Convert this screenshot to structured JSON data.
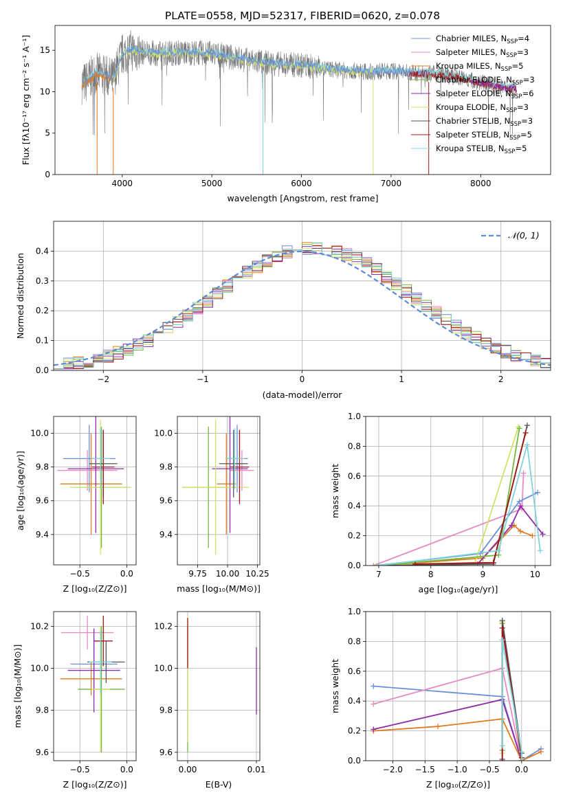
{
  "title": "PLATE=0558, MJD=52317, FIBERID=0620, z=0.078",
  "colors": {
    "chabrier_miles": "#6a8fd8",
    "salpeter_miles": "#e78ac3",
    "kroupa_miles": "#e07b1e",
    "chabrier_elodie": "#75b83a",
    "salpeter_elodie": "#8e2aa8",
    "kroupa_elodie": "#d4e06a",
    "chabrier_stelib": "#555555",
    "salpeter_stelib": "#a31515",
    "kroupa_stelib": "#7fd3dc",
    "normal_curve": "#5b8bd6"
  },
  "chart_data": [
    {
      "id": "spectrum",
      "type": "line",
      "title": "PLATE=0558, MJD=52317, FIBERID=0620, z=0.078",
      "xlabel": "wavelength [Angstrom, rest frame]",
      "ylabel": "Flux [fλ10⁻¹⁷ erg cm⁻² s⁻¹ A⁻¹]",
      "xlim": [
        3250,
        8780
      ],
      "ylim": [
        0,
        18
      ],
      "xticks": [
        4000,
        5000,
        6000,
        7000,
        8000
      ],
      "yticks": [
        0,
        5,
        10,
        15
      ],
      "legend_position": "top-right",
      "legend": [
        {
          "label": "Chabrier MILES, N",
          "sub": "SSP",
          "tail": "=4",
          "color_key": "chabrier_miles"
        },
        {
          "label": "Salpeter MILES, N",
          "sub": "SSP",
          "tail": "=3",
          "color_key": "salpeter_miles"
        },
        {
          "label": "Kroupa MILES, N",
          "sub": "SSP",
          "tail": "=5",
          "color_key": "kroupa_miles"
        },
        {
          "label": "Chabrier ELODIE, N",
          "sub": "SSP",
          "tail": "=3",
          "color_key": "chabrier_elodie"
        },
        {
          "label": "Salpeter ELODIE, N",
          "sub": "SSP",
          "tail": "=6",
          "color_key": "salpeter_elodie"
        },
        {
          "label": "Kroupa ELODIE, N",
          "sub": "SSP",
          "tail": "=3",
          "color_key": "kroupa_elodie"
        },
        {
          "label": "Chabrier STELIB, N",
          "sub": "SSP",
          "tail": "=3",
          "color_key": "chabrier_stelib"
        },
        {
          "label": "Salpeter STELIB, N",
          "sub": "SSP",
          "tail": "=5",
          "color_key": "salpeter_stelib"
        },
        {
          "label": "Kroupa STELIB, N",
          "sub": "SSP",
          "tail": "=5",
          "color_key": "kroupa_stelib"
        }
      ],
      "continuum": {
        "x": [
          3550,
          3600,
          3700,
          3800,
          3900,
          4000,
          4100,
          4200,
          4400,
          4600,
          4800,
          5000,
          5200,
          5400,
          5600,
          5800,
          6000,
          6200,
          6400,
          6600,
          6800,
          7000,
          7200,
          7400,
          7600,
          7800,
          8000,
          8200,
          8400
        ],
        "y": [
          11.0,
          11.2,
          12.2,
          12.0,
          11.5,
          14.5,
          15.0,
          14.8,
          14.6,
          14.7,
          14.7,
          14.6,
          14.2,
          13.8,
          13.5,
          13.3,
          13.2,
          12.9,
          12.6,
          12.5,
          12.4,
          12.5,
          12.3,
          12.2,
          12.0,
          11.6,
          11.1,
          10.6,
          10.3
        ]
      },
      "models": [
        {
          "color_key": "kroupa_stelib",
          "offset": 0.15,
          "range": [
            3550,
            8400
          ]
        },
        {
          "color_key": "kroupa_elodie",
          "offset": -0.1,
          "range": [
            3900,
            6800
          ]
        },
        {
          "color_key": "chabrier_miles",
          "offset": 0.05,
          "range": [
            3550,
            7420
          ]
        },
        {
          "color_key": "salpeter_stelib",
          "offset": -0.05,
          "range": [
            7200,
            8400
          ]
        },
        {
          "color_key": "salpeter_elodie",
          "offset": 0.0,
          "range": [
            7900,
            8400
          ]
        },
        {
          "color_key": "kroupa_miles",
          "offset": -0.2,
          "range": [
            3550,
            3900
          ]
        }
      ]
    },
    {
      "id": "residuals",
      "type": "histogram",
      "xlabel": "(data-model)/error",
      "ylabel": "Normed distribution",
      "xlim": [
        -2.5,
        2.5
      ],
      "ylim": [
        0,
        0.5
      ],
      "xticks": [
        -2,
        -1,
        0,
        1,
        2
      ],
      "yticks": [
        0.0,
        0.1,
        0.2,
        0.3,
        0.4
      ],
      "legend_position": "top-right",
      "legend_label": "𝒩(0, 1)",
      "bin_width": 0.1,
      "normal": {
        "mean": 0,
        "sigma": 1
      }
    },
    {
      "id": "age-vs-Z",
      "type": "errorbar",
      "xlabel": "Z [log₁₀(Z/Z⊙)]",
      "ylabel": "age  [log₁₀(age/yr)]",
      "xlim": [
        -0.78,
        0.1
      ],
      "ylim": [
        9.22,
        10.1
      ],
      "xticks": [
        -0.5,
        0.0
      ],
      "yticks": [
        9.4,
        9.6,
        9.8,
        10.0
      ],
      "points": [
        {
          "color_key": "chabrier_miles",
          "x": -0.4,
          "y": 9.85,
          "xerr": 0.28,
          "yerr": 0.2
        },
        {
          "color_key": "salpeter_miles",
          "x": -0.42,
          "y": 9.78,
          "xerr": 0.32,
          "yerr": 0.12
        },
        {
          "color_key": "kroupa_miles",
          "x": -0.38,
          "y": 9.7,
          "xerr": 0.33,
          "yerr": 0.3
        },
        {
          "color_key": "chabrier_elodie",
          "x": -0.27,
          "y": 9.68,
          "xerr": 0.3,
          "yerr": 0.36
        },
        {
          "color_key": "salpeter_elodie",
          "x": -0.33,
          "y": 9.79,
          "xerr": 0.3,
          "yerr": 0.38
        },
        {
          "color_key": "kroupa_elodie",
          "x": -0.28,
          "y": 9.68,
          "xerr": 0.33,
          "yerr": 0.4
        },
        {
          "color_key": "chabrier_stelib",
          "x": -0.25,
          "y": 9.82,
          "xerr": 0.15,
          "yerr": 0.2
        },
        {
          "color_key": "salpeter_stelib",
          "x": -0.25,
          "y": 9.8,
          "xerr": 0.12,
          "yerr": 0.22
        },
        {
          "color_key": "kroupa_stelib",
          "x": -0.28,
          "y": 9.85,
          "xerr": 0.1,
          "yerr": 0.18
        }
      ]
    },
    {
      "id": "age-vs-mass",
      "type": "errorbar",
      "xlabel": "mass [log₁₀(M/M⊙)]",
      "ylabel": "",
      "xlim": [
        9.58,
        10.27
      ],
      "ylim": [
        9.22,
        10.1
      ],
      "xticks": [
        9.75,
        10.0,
        10.25
      ],
      "tick_labels": [
        "9.75",
        "10.00",
        "10.25"
      ],
      "yticks": [
        9.4,
        9.6,
        9.8,
        10.0
      ],
      "points": [
        {
          "color_key": "chabrier_miles",
          "x": 10.08,
          "y": 9.85,
          "xerr": 0.09,
          "yerr": 0.2
        },
        {
          "color_key": "salpeter_miles",
          "x": 10.12,
          "y": 9.78,
          "xerr": 0.1,
          "yerr": 0.12
        },
        {
          "color_key": "kroupa_miles",
          "x": 9.99,
          "y": 9.7,
          "xerr": 0.08,
          "yerr": 0.3
        },
        {
          "color_key": "chabrier_elodie",
          "x": 9.84,
          "y": 9.68,
          "xerr": 0.22,
          "yerr": 0.36
        },
        {
          "color_key": "salpeter_elodie",
          "x": 10.02,
          "y": 9.79,
          "xerr": 0.15,
          "yerr": 0.38
        },
        {
          "color_key": "kroupa_elodie",
          "x": 9.9,
          "y": 9.68,
          "xerr": 0.28,
          "yerr": 0.4
        },
        {
          "color_key": "chabrier_stelib",
          "x": 10.05,
          "y": 9.82,
          "xerr": 0.12,
          "yerr": 0.2
        },
        {
          "color_key": "salpeter_stelib",
          "x": 10.1,
          "y": 9.8,
          "xerr": 0.08,
          "yerr": 0.22
        },
        {
          "color_key": "kroupa_stelib",
          "x": 10.06,
          "y": 9.85,
          "xerr": 0.08,
          "yerr": 0.18
        }
      ]
    },
    {
      "id": "weight-vs-age",
      "type": "line",
      "xlabel": "age  [log₁₀(age/yr)]",
      "ylabel": "mass weight",
      "xlim": [
        6.75,
        10.3
      ],
      "ylim": [
        0,
        1.0
      ],
      "xticks": [
        7,
        8,
        9,
        10
      ],
      "yticks": [
        0.0,
        0.2,
        0.4,
        0.6,
        0.8,
        1.0
      ],
      "series": [
        {
          "color_key": "salpeter_miles",
          "x": [
            6.9,
            9.75,
            9.78
          ],
          "y": [
            0.0,
            0.38,
            0.62
          ]
        },
        {
          "color_key": "kroupa_miles",
          "x": [
            7.0,
            9.0,
            9.6,
            9.72,
            9.95
          ],
          "y": [
            0.0,
            0.05,
            0.27,
            0.23,
            0.2
          ]
        },
        {
          "color_key": "chabrier_miles",
          "x": [
            6.95,
            8.95,
            9.7,
            10.05
          ],
          "y": [
            0.0,
            0.08,
            0.43,
            0.49
          ]
        },
        {
          "color_key": "salpeter_elodie",
          "x": [
            6.95,
            8.9,
            9.55,
            9.72,
            10.15
          ],
          "y": [
            0.0,
            0.01,
            0.27,
            0.4,
            0.21
          ]
        },
        {
          "color_key": "kroupa_elodie",
          "x": [
            6.95,
            8.85,
            9.68
          ],
          "y": [
            0.0,
            0.02,
            0.93
          ]
        },
        {
          "color_key": "chabrier_elodie",
          "x": [
            7.0,
            9.3,
            9.7
          ],
          "y": [
            0.0,
            0.07,
            0.92
          ]
        },
        {
          "color_key": "chabrier_stelib",
          "x": [
            7.0,
            9.2,
            9.85
          ],
          "y": [
            0.0,
            0.01,
            0.94
          ]
        },
        {
          "color_key": "salpeter_stelib",
          "x": [
            7.7,
            9.2,
            9.82
          ],
          "y": [
            0.01,
            0.02,
            0.89
          ]
        },
        {
          "color_key": "kroupa_stelib",
          "x": [
            7.0,
            9.3,
            9.85,
            10.1
          ],
          "y": [
            0.0,
            0.1,
            0.81,
            0.1
          ]
        }
      ]
    },
    {
      "id": "mass-vs-Z",
      "type": "errorbar",
      "xlabel": "Z [log₁₀(Z/Z⊙)]",
      "ylabel": "mass [log₁₀(M/M⊙)]",
      "xlim": [
        -0.78,
        0.1
      ],
      "ylim": [
        9.56,
        10.27
      ],
      "xticks": [
        -0.5,
        0.0
      ],
      "yticks": [
        9.6,
        9.8,
        10.0,
        10.2
      ],
      "points": [
        {
          "color_key": "chabrier_miles",
          "x": -0.35,
          "y": 10.02,
          "xerr": 0.25,
          "yerr": 0.12
        },
        {
          "color_key": "salpeter_miles",
          "x": -0.42,
          "y": 10.17,
          "xerr": 0.28,
          "yerr": 0.08
        },
        {
          "color_key": "kroupa_miles",
          "x": -0.38,
          "y": 9.95,
          "xerr": 0.33,
          "yerr": 0.08
        },
        {
          "color_key": "chabrier_elodie",
          "x": -0.27,
          "y": 9.9,
          "xerr": 0.25,
          "yerr": 0.3
        },
        {
          "color_key": "salpeter_elodie",
          "x": -0.35,
          "y": 9.99,
          "xerr": 0.28,
          "yerr": 0.2
        },
        {
          "color_key": "kroupa_elodie",
          "x": -0.28,
          "y": 9.9,
          "xerr": 0.1,
          "yerr": 0.3
        },
        {
          "color_key": "chabrier_stelib",
          "x": -0.22,
          "y": 10.03,
          "xerr": 0.2,
          "yerr": 0.1
        },
        {
          "color_key": "salpeter_stelib",
          "x": -0.25,
          "y": 10.13,
          "xerr": 0.1,
          "yerr": 0.12
        },
        {
          "color_key": "kroupa_stelib",
          "x": -0.28,
          "y": 10.03,
          "xerr": 0.12,
          "yerr": 0.15
        }
      ]
    },
    {
      "id": "mass-vs-ebv",
      "type": "errorbar",
      "xlabel": "E(B-V)",
      "ylabel": "",
      "xlim": [
        -0.0015,
        0.0105
      ],
      "ylim": [
        9.56,
        10.27
      ],
      "xticks": [
        0.0,
        0.01
      ],
      "tick_labels": [
        "0.00",
        "0.01"
      ],
      "yticks": [
        9.6,
        9.8,
        10.0,
        10.2
      ],
      "points": [
        {
          "color_key": "chabrier_elodie",
          "x": 0.0,
          "y": 9.9,
          "xerr": 0.0,
          "yerr": 0.3
        },
        {
          "color_key": "kroupa_elodie",
          "x": 0.0,
          "y": 9.95,
          "xerr": 0.0,
          "yerr": 0.3
        },
        {
          "color_key": "salpeter_stelib",
          "x": 0.0,
          "y": 10.12,
          "xerr": 0.0,
          "yerr": 0.12
        },
        {
          "color_key": "salpeter_elodie",
          "x": 0.01,
          "y": 9.94,
          "xerr": 0.0,
          "yerr": 0.16
        }
      ]
    },
    {
      "id": "weight-vs-Z",
      "type": "line",
      "xlabel": "Z [log₁₀(Z/Z⊙)]",
      "ylabel": "mass weight",
      "xlim": [
        -2.42,
        0.45
      ],
      "ylim": [
        0,
        1.0
      ],
      "xticks": [
        -2.0,
        -1.5,
        -1.0,
        -0.5,
        0.0
      ],
      "yticks": [
        0.0,
        0.2,
        0.4,
        0.6,
        0.8,
        1.0
      ],
      "series": [
        {
          "color_key": "chabrier_miles",
          "x": [
            -2.3,
            -0.3,
            0.0,
            0.3
          ],
          "y": [
            0.5,
            0.43,
            0.0,
            0.08
          ]
        },
        {
          "color_key": "salpeter_miles",
          "x": [
            -2.3,
            -0.3,
            0.0
          ],
          "y": [
            0.38,
            0.62,
            0.0
          ]
        },
        {
          "color_key": "kroupa_miles",
          "x": [
            -2.3,
            -1.3,
            -0.3,
            0.0,
            0.3
          ],
          "y": [
            0.2,
            0.23,
            0.28,
            0.0,
            0.06
          ]
        },
        {
          "color_key": "salpeter_elodie",
          "x": [
            -2.3,
            -0.3,
            0.0
          ],
          "y": [
            0.21,
            0.41,
            0.0
          ]
        },
        {
          "color_key": "chabrier_elodie",
          "x": [
            -0.3,
            -0.3,
            0.0
          ],
          "y": [
            0.07,
            0.92,
            0.0
          ]
        },
        {
          "color_key": "kroupa_elodie",
          "x": [
            -0.3,
            -0.3,
            0.0
          ],
          "y": [
            0.05,
            0.93,
            0.02
          ]
        },
        {
          "color_key": "chabrier_stelib",
          "x": [
            -0.3,
            -0.3,
            0.0,
            0.0
          ],
          "y": [
            0.01,
            0.94,
            0.05,
            0.0
          ]
        },
        {
          "color_key": "salpeter_stelib",
          "x": [
            -0.3,
            -0.3,
            0.0
          ],
          "y": [
            0.0,
            0.89,
            0.02
          ]
        },
        {
          "color_key": "kroupa_stelib",
          "x": [
            -0.3,
            -0.3,
            0.0,
            0.0
          ],
          "y": [
            0.1,
            0.81,
            0.06,
            0.0
          ]
        }
      ]
    }
  ]
}
